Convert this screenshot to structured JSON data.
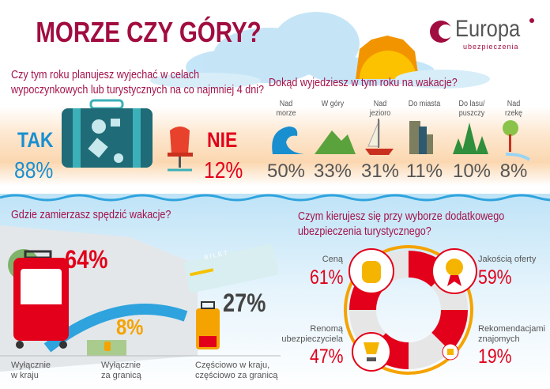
{
  "header": {
    "title": "MORZE CZY GÓRY?",
    "logo": {
      "name": "Europa",
      "tagline": "ubezpieczenia"
    }
  },
  "colors": {
    "brand": "#a10d40",
    "tak": "#1a8fd0",
    "nie": "#e2001a",
    "gray": "#555555",
    "orange": "#f5a300"
  },
  "q1": {
    "question_line1": "Czy  tym roku planujesz wyjechać w celach",
    "question_line2": "wypoczynkowych lub turystycznych na co najmniej 4 dni?",
    "yes_label": "TAK",
    "yes_pct": "88%",
    "no_label": "NIE",
    "no_pct": "12%",
    "icons": [
      "suitcase-icon",
      "chair-icon"
    ]
  },
  "q2": {
    "question": "Dokąd wyjedziesz w tym roku na wakacje?",
    "items": [
      {
        "label1": "Nad",
        "label2": "morze",
        "pct": "50%",
        "icon": "wave-icon"
      },
      {
        "label1": "W góry",
        "label2": "",
        "pct": "33%",
        "icon": "mountains-icon"
      },
      {
        "label1": "Nad",
        "label2": "jezioro",
        "pct": "31%",
        "icon": "sailboat-icon"
      },
      {
        "label1": "Do miasta",
        "label2": "",
        "pct": "11%",
        "icon": "city-icon"
      },
      {
        "label1": "Do lasu/",
        "label2": "puszczy",
        "pct": "10%",
        "icon": "forest-icon"
      },
      {
        "label1": "Nad",
        "label2": "rzekę",
        "pct": "8%",
        "icon": "tree-river-icon"
      }
    ]
  },
  "q3": {
    "question": "Gdzie zamierzasz spędzić wakacje?",
    "ticket_text": "BILET",
    "items": [
      {
        "label1": "Wyłącznie",
        "label2": "w kraju",
        "pct": "64%"
      },
      {
        "label1": "Wyłącznie",
        "label2": "za granicą",
        "pct": "8%"
      },
      {
        "label1": "Częściowo w kraju,",
        "label2": "częściowo za granicą",
        "pct": "27%"
      }
    ]
  },
  "q4": {
    "question_line1": "Czym kierujesz się przy wyborze dodatkowego",
    "question_line2": "ubezpieczenia turystycznego?",
    "items": [
      {
        "label1": "Ceną",
        "label2": "",
        "pct": "61%",
        "icon": "coins-icon"
      },
      {
        "label1": "Jakością oferty",
        "label2": "",
        "pct": "59%",
        "icon": "medal-icon"
      },
      {
        "label1": "Renomą",
        "label2": "ubezpieczyciela",
        "pct": "47%",
        "icon": "trophy-icon"
      },
      {
        "label1": "Rekomendacjami",
        "label2": "znajomych",
        "pct": "19%",
        "icon": "thumbs-up-icon"
      }
    ]
  }
}
